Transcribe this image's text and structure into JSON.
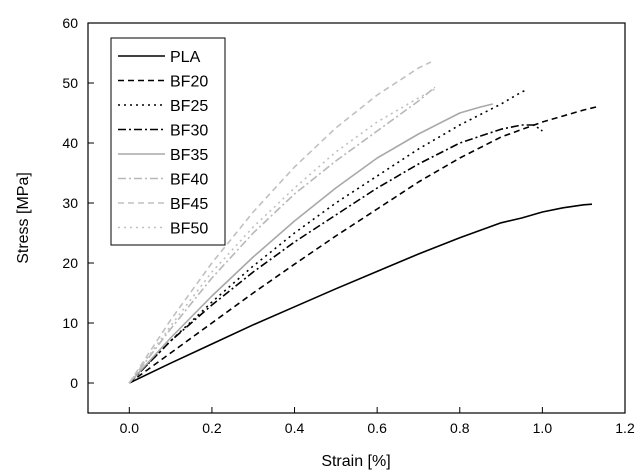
{
  "chart_data": {
    "type": "line",
    "title": "",
    "xlabel": "Strain [%]",
    "ylabel": "Stress [MPa]",
    "xlim": [
      -0.1,
      1.2
    ],
    "ylim": [
      -5,
      60
    ],
    "xticks": [
      "0.0",
      "0.2",
      "0.4",
      "0.6",
      "0.8",
      "1.0",
      "1.2"
    ],
    "yticks": [
      "0",
      "10",
      "20",
      "30",
      "40",
      "50",
      "60"
    ],
    "grid": false,
    "legend_position": "top-left",
    "series": [
      {
        "name": "PLA",
        "color": "#000000",
        "dash": "solid",
        "x": [
          0.0,
          0.1,
          0.2,
          0.3,
          0.4,
          0.5,
          0.6,
          0.7,
          0.8,
          0.9,
          0.95,
          1.0,
          1.05,
          1.1,
          1.12
        ],
        "y": [
          0.0,
          3.3,
          6.5,
          9.7,
          12.7,
          15.7,
          18.6,
          21.5,
          24.2,
          26.7,
          27.5,
          28.5,
          29.2,
          29.7,
          29.8
        ]
      },
      {
        "name": "BF20",
        "color": "#000000",
        "dash": "dashed",
        "x": [
          0.0,
          0.1,
          0.2,
          0.3,
          0.4,
          0.5,
          0.6,
          0.7,
          0.8,
          0.9,
          1.0,
          1.05,
          1.1,
          1.13
        ],
        "y": [
          0.0,
          5.0,
          10.0,
          15.0,
          19.8,
          24.5,
          29.0,
          33.5,
          37.5,
          41.0,
          43.5,
          44.5,
          45.5,
          46.0
        ]
      },
      {
        "name": "BF25",
        "color": "#000000",
        "dash": "dotted",
        "x": [
          0.0,
          0.1,
          0.2,
          0.3,
          0.4,
          0.5,
          0.6,
          0.7,
          0.8,
          0.9,
          0.95,
          0.96
        ],
        "y": [
          0.0,
          7.0,
          13.5,
          19.5,
          25.0,
          30.0,
          34.5,
          39.0,
          43.0,
          46.5,
          48.5,
          48.8
        ]
      },
      {
        "name": "BF30",
        "color": "#000000",
        "dash": "dashdot",
        "x": [
          0.0,
          0.1,
          0.2,
          0.3,
          0.4,
          0.5,
          0.6,
          0.7,
          0.8,
          0.9,
          0.95,
          0.98,
          1.0
        ],
        "y": [
          0.0,
          7.0,
          13.0,
          18.5,
          23.5,
          28.0,
          32.5,
          36.5,
          40.0,
          42.3,
          43.0,
          43.0,
          42.0
        ]
      },
      {
        "name": "BF35",
        "color": "#a8a8a8",
        "dash": "solid",
        "x": [
          0.0,
          0.1,
          0.2,
          0.3,
          0.4,
          0.5,
          0.6,
          0.7,
          0.8,
          0.85,
          0.88
        ],
        "y": [
          0.0,
          7.5,
          14.5,
          21.0,
          27.0,
          32.5,
          37.5,
          41.5,
          45.0,
          46.0,
          46.5
        ]
      },
      {
        "name": "BF40",
        "color": "#b8b8b8",
        "dash": "dashdot",
        "x": [
          0.0,
          0.1,
          0.2,
          0.3,
          0.4,
          0.5,
          0.6,
          0.7,
          0.74
        ],
        "y": [
          0.0,
          9.0,
          17.5,
          25.0,
          31.5,
          37.0,
          42.0,
          47.0,
          49.3
        ]
      },
      {
        "name": "BF45",
        "color": "#c0c0c0",
        "dash": "dashed",
        "x": [
          0.0,
          0.1,
          0.2,
          0.3,
          0.4,
          0.5,
          0.6,
          0.7,
          0.73
        ],
        "y": [
          0.0,
          10.5,
          20.0,
          28.5,
          36.0,
          42.5,
          48.0,
          52.5,
          53.5
        ]
      },
      {
        "name": "BF50",
        "color": "#c0c0c0",
        "dash": "dotted",
        "x": [
          0.0,
          0.1,
          0.2,
          0.3,
          0.4,
          0.5,
          0.6,
          0.7,
          0.74
        ],
        "y": [
          0.0,
          9.5,
          18.5,
          26.0,
          32.5,
          38.5,
          43.5,
          47.5,
          49.0
        ]
      }
    ]
  }
}
